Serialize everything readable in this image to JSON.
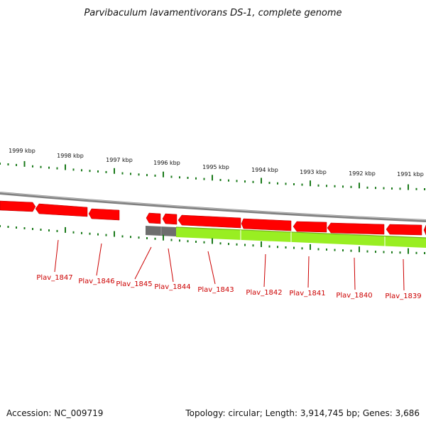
{
  "title": "Parvibaculum lavamentivorans DS-1, complete genome",
  "accession": "Accession: NC_009719",
  "summary": "Topology: circular; Length: 3,914,745 bp; Genes: 3,686",
  "colors": {
    "gene": "#ff0000",
    "gene_dark": "#c80000",
    "feature_green": "#99ee22",
    "feature_gray": "#6e6e6e",
    "backbone": "#808080",
    "tick": "#1a7a1a",
    "label": "#cc0000"
  },
  "ruler": {
    "labels": [
      "1999 kbp",
      "1998 kbp",
      "1997 kbp",
      "1996 kbp",
      "1995 kbp",
      "1994 kbp",
      "1993 kbp",
      "1992 kbp",
      "1991 kbp"
    ]
  },
  "genes": [
    {
      "name": "Plav_1847"
    },
    {
      "name": "Plav_1846"
    },
    {
      "name": "Plav_1845"
    },
    {
      "name": "Plav_1844"
    },
    {
      "name": "Plav_1843"
    },
    {
      "name": "Plav_1842"
    },
    {
      "name": "Plav_1841"
    },
    {
      "name": "Plav_1840"
    },
    {
      "name": "Plav_1839"
    }
  ]
}
